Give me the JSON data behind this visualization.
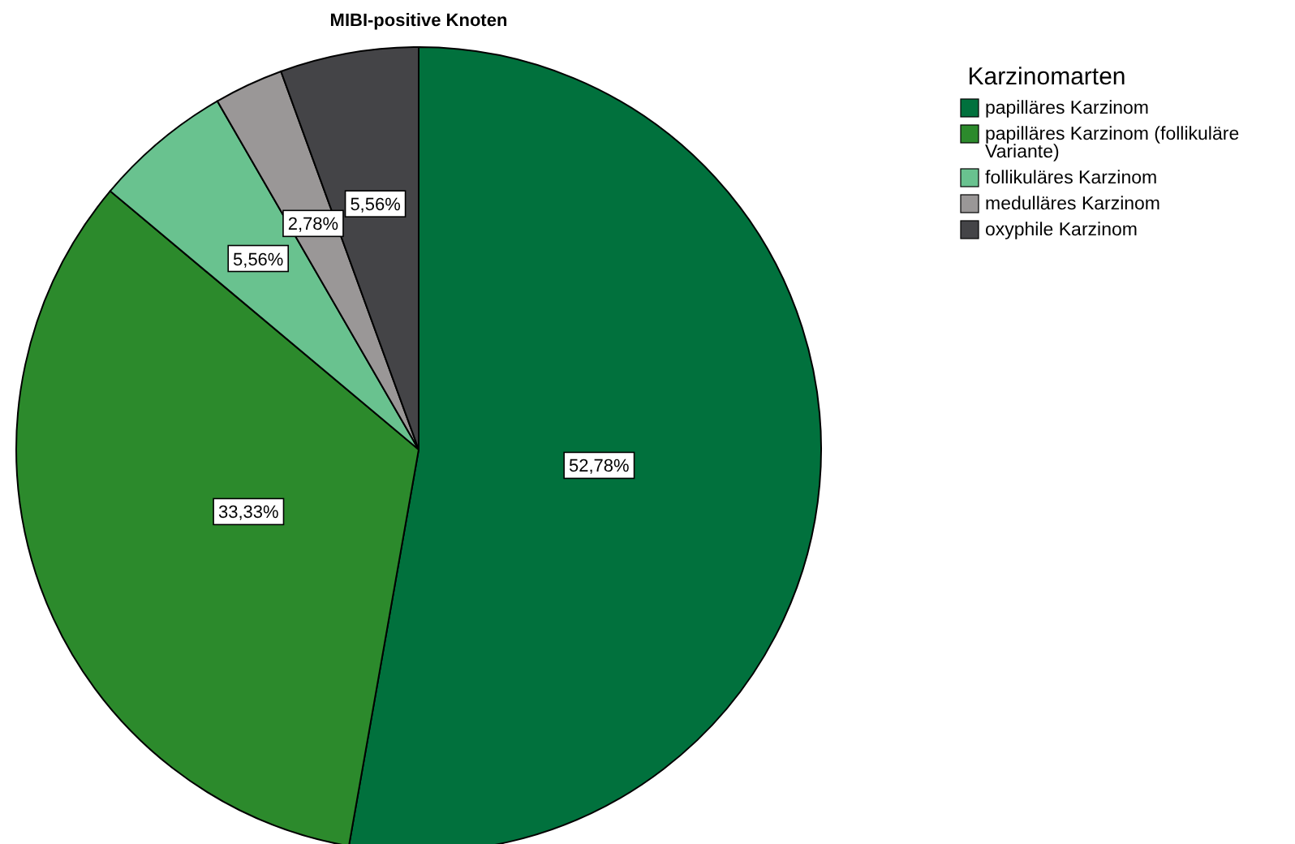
{
  "chart_data": {
    "type": "pie",
    "title": "MIBI-positive Knoten",
    "legend_title": "Karzinomarten",
    "legend": "top right",
    "categories": [
      "papilläres Karzinom",
      "papilläres Karzinom (follikuläre Variante)",
      "follikuläres Karzinom",
      "medulläres Karzinom",
      "oxyphile Karzinom"
    ],
    "values": [
      52.78,
      33.33,
      5.56,
      2.78,
      5.56
    ],
    "value_labels": [
      "52,78%",
      "33,33%",
      "5,56%",
      "2,78%",
      "5,56%"
    ],
    "colors": [
      "#01713d",
      "#2c8a2c",
      "#69c28f",
      "#9a9797",
      "#444447"
    ]
  }
}
